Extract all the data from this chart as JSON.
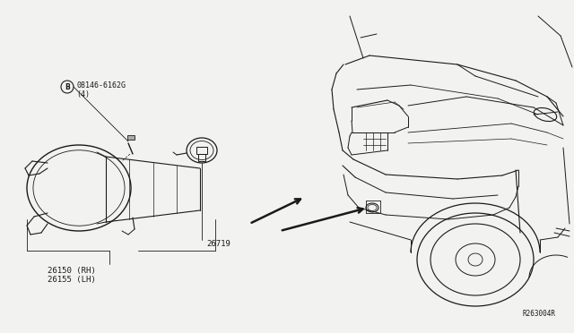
{
  "bg_color": "#f2f2f0",
  "line_color": "#1a1a1a",
  "fig_width": 6.4,
  "fig_height": 3.72,
  "dpi": 100,
  "parts": {
    "bolt_label": "08146-6162G",
    "bolt_sub": "(4)",
    "fog_label_1": "26150 (RH)",
    "fog_label_2": "26155 (LH)",
    "bulb_label": "26719",
    "ref_code": "R263004R"
  }
}
